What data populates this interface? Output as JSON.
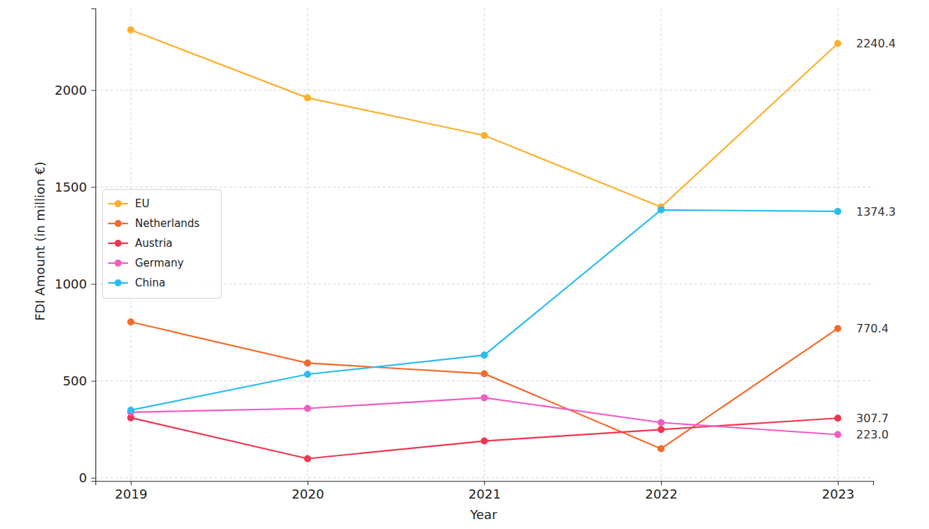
{
  "chart_data": {
    "type": "line",
    "x": [
      2019,
      2020,
      2021,
      2022,
      2023
    ],
    "xlabel": "Year",
    "ylabel": "FDI Amount (in million €)",
    "xlim": [
      2018.8,
      2023.2
    ],
    "xticks": [
      2019,
      2020,
      2021,
      2022,
      2023
    ],
    "ylim": [
      -16,
      2421
    ],
    "yticks": [
      0,
      500,
      1000,
      1500,
      2000
    ],
    "grid": true,
    "legend": "center left",
    "marker": "circle",
    "series": [
      {
        "name": "EU",
        "color": "#fbb02d",
        "values": [
          2311,
          1960,
          1766,
          1397,
          2240.4
        ],
        "value_labels": [
          null,
          null,
          null,
          null,
          "2240.4"
        ]
      },
      {
        "name": "Netherlands",
        "color": "#f26b2b",
        "values": [
          804,
          592,
          537,
          150,
          770.4
        ],
        "value_labels": [
          null,
          null,
          null,
          null,
          "770.4"
        ]
      },
      {
        "name": "Austria",
        "color": "#ef3551",
        "values": [
          310,
          99,
          190,
          249,
          307.7
        ],
        "value_labels": [
          null,
          null,
          null,
          null,
          "307.7"
        ]
      },
      {
        "name": "Germany",
        "color": "#f25bc2",
        "values": [
          338,
          358,
          413,
          285,
          223.0
        ],
        "value_labels": [
          null,
          null,
          null,
          null,
          "223.0"
        ]
      },
      {
        "name": "China",
        "color": "#2bbcf0",
        "values": [
          349,
          534,
          633,
          1382,
          1374.3
        ],
        "value_labels": [
          null,
          null,
          null,
          null,
          "1374.3"
        ]
      }
    ]
  }
}
